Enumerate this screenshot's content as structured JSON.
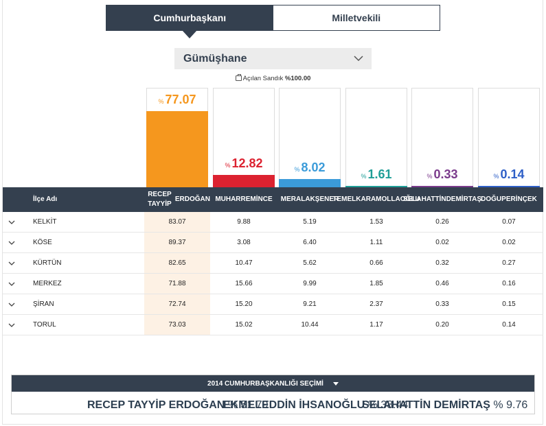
{
  "tabs": [
    {
      "label": "Cumhurbaşkanı",
      "active": true
    },
    {
      "label": "Milletvekili",
      "active": false
    }
  ],
  "province_select": {
    "value": "Gümüşhane"
  },
  "ballot": {
    "label": "Açılan Sandık",
    "pct_symbol": "%",
    "value": "100.00"
  },
  "candidates": [
    {
      "short": "RECEP TAYYİP ERDOĞAN",
      "line1": "RECEP TAYYİP",
      "line2": "ERDOĞAN",
      "percent": "77.07",
      "value": 77.07,
      "color": "#f5971e"
    },
    {
      "short": "MUHARREM İNCE",
      "line1": "MUHARREM",
      "line2": "İNCE",
      "percent": "12.82",
      "value": 12.82,
      "color": "#dc2230"
    },
    {
      "short": "MERAL AKŞENER",
      "line1": "MERAL",
      "line2": "AKŞENER",
      "percent": "8.02",
      "value": 8.02,
      "color": "#3b9bd9"
    },
    {
      "short": "TEMEL KARAMOLLAOĞLU",
      "line1": "TEMEL",
      "line2": "KARAMOLLAOĞLU",
      "percent": "1.61",
      "value": 1.61,
      "color": "#1f9e97"
    },
    {
      "short": "SELAHATTİN DEMİRTAŞ",
      "line1": "SELAHATTİN",
      "line2": "DEMİRTAŞ",
      "percent": "0.33",
      "value": 0.33,
      "color": "#7b3b8c"
    },
    {
      "short": "DOĞU PERİNÇEK",
      "line1": "DOĞU",
      "line2": "PERİNÇEK",
      "percent": "0.14",
      "value": 0.14,
      "color": "#2e5fc7"
    }
  ],
  "table": {
    "district_header": "İlçe Adı",
    "rows": [
      {
        "name": "KELKİT",
        "values": [
          "83.07",
          "9.88",
          "5.19",
          "1.53",
          "0.26",
          "0.07"
        ]
      },
      {
        "name": "KÖSE",
        "values": [
          "89.37",
          "3.08",
          "6.40",
          "1.11",
          "0.02",
          "0.02"
        ]
      },
      {
        "name": "KÜRTÜN",
        "values": [
          "82.65",
          "10.47",
          "5.62",
          "0.66",
          "0.32",
          "0.27"
        ]
      },
      {
        "name": "MERKEZ",
        "values": [
          "71.88",
          "15.66",
          "9.99",
          "1.85",
          "0.46",
          "0.16"
        ]
      },
      {
        "name": "ŞİRAN",
        "values": [
          "72.74",
          "15.20",
          "9.21",
          "2.37",
          "0.33",
          "0.15"
        ]
      },
      {
        "name": "TORUL",
        "values": [
          "73.03",
          "15.02",
          "10.44",
          "1.17",
          "0.20",
          "0.14"
        ]
      }
    ]
  },
  "previous_election": {
    "title": "2014 CUMHURBAŞKANLIĞI SEÇİMİ",
    "results": [
      {
        "name": "RECEP TAYYİP ERDOĞAN",
        "pct_symbol": "%",
        "value": "51.79"
      },
      {
        "name": "EKMELEDDİN İHSANOĞLU",
        "pct_symbol": "%",
        "value": "38.44"
      },
      {
        "name": "SELAHATTİN DEMİRTAŞ",
        "pct_symbol": "%",
        "value": "9.76"
      }
    ]
  }
}
